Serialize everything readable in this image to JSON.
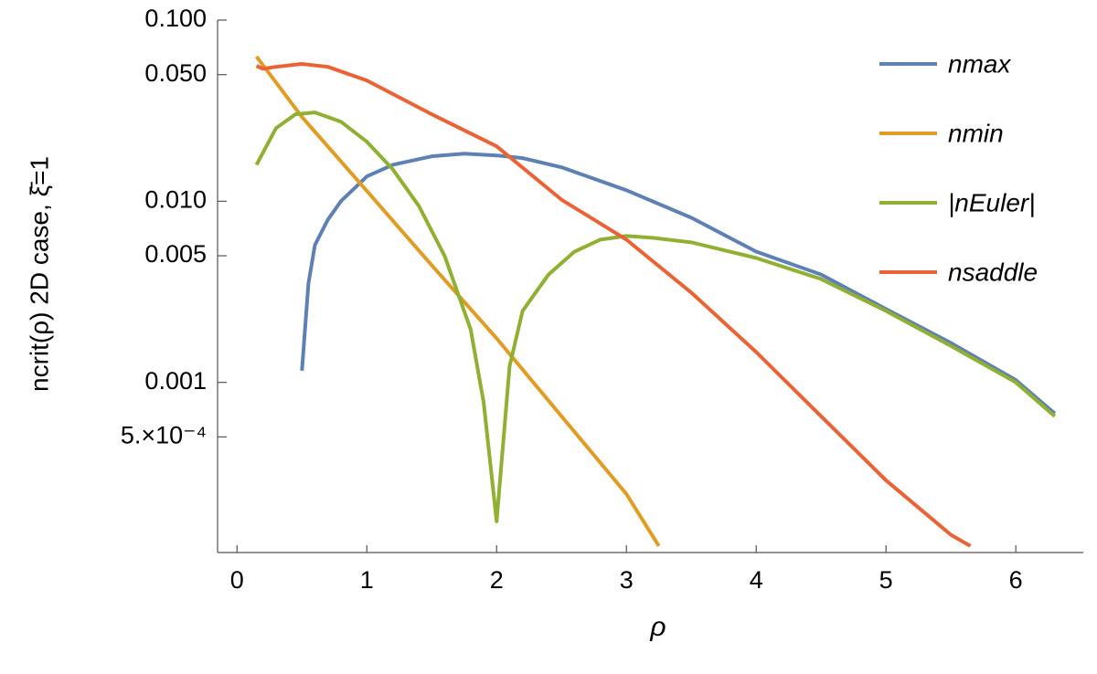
{
  "chart_data": {
    "type": "line",
    "x_label": "ρ",
    "y_label": "ncrit(ρ) 2D case, ξ̄=1",
    "xlim": [
      -0.15,
      6.52
    ],
    "xticks": [
      0,
      1,
      2,
      3,
      4,
      5,
      6
    ],
    "ylim": [
      0.000115,
      0.1
    ],
    "log_y": true,
    "yticks": [
      {
        "value": 0.1,
        "label": "0.100"
      },
      {
        "value": 0.05,
        "label": "0.050"
      },
      {
        "value": 0.01,
        "label": "0.010"
      },
      0.005,
      0.001,
      {
        "value": 0.0005,
        "label": "5.×10⁻⁴"
      }
    ],
    "legend": "top-right",
    "series": [
      {
        "name": "nmax",
        "color": "#5E81B5",
        "x": [
          0.5,
          0.55,
          0.6,
          0.7,
          0.8,
          1.0,
          1.2,
          1.5,
          1.75,
          2.0,
          2.2,
          2.5,
          3.0,
          3.5,
          4.0,
          4.5,
          5.0,
          5.5,
          6.0,
          6.3
        ],
        "values": [
          0.00116,
          0.00351,
          0.00573,
          0.00792,
          0.01,
          0.0137,
          0.0159,
          0.0177,
          0.0183,
          0.0179,
          0.0173,
          0.0154,
          0.0115,
          0.00811,
          0.00527,
          0.00394,
          0.00254,
          0.00165,
          0.00103,
          0.000673
        ]
      },
      {
        "name": "nmin",
        "color": "#E19C24",
        "x": [
          0.15,
          0.5,
          1.0,
          1.5,
          2.0,
          2.5,
          3.0,
          3.25
        ],
        "values": [
          0.0629,
          0.0292,
          0.0114,
          0.00443,
          0.00175,
          0.00065,
          0.000242,
          0.000125
        ]
      },
      {
        "name": "|nEuler|",
        "color": "#8FB032",
        "x": [
          0.15,
          0.3,
          0.45,
          0.6,
          0.8,
          1.0,
          1.2,
          1.4,
          1.6,
          1.8,
          1.9,
          2.0,
          2.1,
          2.2,
          2.4,
          2.6,
          2.8,
          3.0,
          3.2,
          3.5,
          4.0,
          4.5,
          5.0,
          5.5,
          6.0,
          6.3
        ],
        "values": [
          0.0159,
          0.0253,
          0.0302,
          0.0309,
          0.0275,
          0.0213,
          0.015,
          0.00944,
          0.00498,
          0.00196,
          0.000775,
          0.000171,
          0.00123,
          0.00248,
          0.00394,
          0.00527,
          0.00614,
          0.00643,
          0.00628,
          0.00593,
          0.00486,
          0.00372,
          0.00248,
          0.00159,
          0.001,
          0.00065
        ]
      },
      {
        "name": "nsaddle",
        "color": "#EB6235",
        "x": [
          0.15,
          0.2,
          0.3,
          0.5,
          0.7,
          1.0,
          1.5,
          2.0,
          2.5,
          3.0,
          3.5,
          4.0,
          4.5,
          5.0,
          5.5,
          5.65
        ],
        "values": [
          0.0558,
          0.0539,
          0.0552,
          0.0573,
          0.0552,
          0.0464,
          0.0302,
          0.0201,
          0.0102,
          0.00614,
          0.00313,
          0.00147,
          0.00065,
          0.000288,
          0.000144,
          0.000125
        ]
      }
    ]
  }
}
